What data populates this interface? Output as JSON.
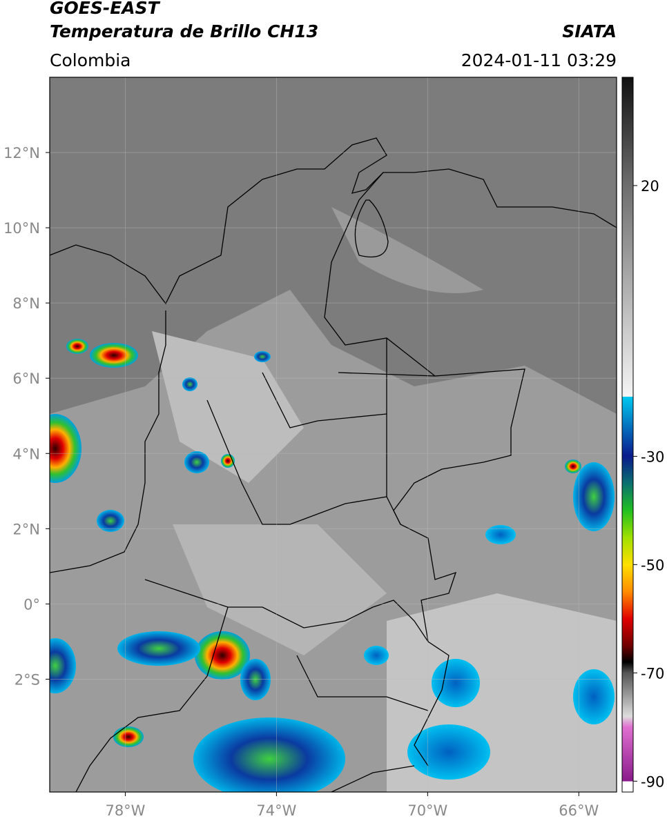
{
  "header": {
    "title": "GOES-EAST",
    "subtitle": "Temperatura de Brillo CH13",
    "region": "Colombia",
    "source": "SIATA",
    "datetime": "2024-01-11 03:29"
  },
  "map": {
    "lon_range": [
      -80,
      -65
    ],
    "lat_range": [
      -5,
      14
    ],
    "lon_ticks": [
      {
        "value": -78,
        "label": "78°W"
      },
      {
        "value": -74,
        "label": "74°W"
      },
      {
        "value": -70,
        "label": "70°W"
      },
      {
        "value": -66,
        "label": "66°W"
      }
    ],
    "lat_ticks": [
      {
        "value": 12,
        "label": "12°N"
      },
      {
        "value": 10,
        "label": "10°N"
      },
      {
        "value": 8,
        "label": "8°N"
      },
      {
        "value": 6,
        "label": "6°N"
      },
      {
        "value": 4,
        "label": "4°N"
      },
      {
        "value": 2,
        "label": "2°N"
      },
      {
        "value": 0,
        "label": "0°"
      },
      {
        "value": -2,
        "label": "2°S"
      }
    ],
    "grid": true
  },
  "colorbar": {
    "range": [
      -92,
      40
    ],
    "ticks": [
      20,
      -30,
      -50,
      -70,
      -90
    ],
    "stops": [
      {
        "value": 40,
        "color": "#111111"
      },
      {
        "value": 20,
        "color": "#6e6e6e"
      },
      {
        "value": -19,
        "color": "#f5f5f5"
      },
      {
        "value": -19,
        "color": "#00c8f0"
      },
      {
        "value": -30,
        "color": "#0a1a8c"
      },
      {
        "value": -35,
        "color": "#0a7070"
      },
      {
        "value": -40,
        "color": "#20c020"
      },
      {
        "value": -45,
        "color": "#a0e000"
      },
      {
        "value": -50,
        "color": "#ffe000"
      },
      {
        "value": -55,
        "color": "#ff8c00"
      },
      {
        "value": -60,
        "color": "#e00000"
      },
      {
        "value": -65,
        "color": "#700000"
      },
      {
        "value": -68,
        "color": "#000000"
      },
      {
        "value": -70,
        "color": "#555555"
      },
      {
        "value": -78,
        "color": "#dddddd"
      },
      {
        "value": -80,
        "color": "#e070d0"
      },
      {
        "value": -90,
        "color": "#8a1a8a"
      },
      {
        "value": -90,
        "color": "#ffffff"
      },
      {
        "value": -92,
        "color": "#ffffff"
      }
    ]
  }
}
